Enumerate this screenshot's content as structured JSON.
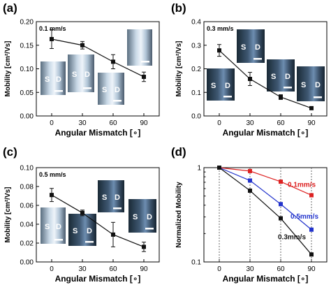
{
  "chart_data": [
    {
      "type": "line",
      "panel_label": "(a)",
      "annotation": "0.1 mm/s",
      "xlabel": "Angular Mismatch [∘]",
      "ylabel": "Mobility [cm²/Vs]",
      "x": [
        0,
        30,
        60,
        90
      ],
      "values": [
        0.163,
        0.15,
        0.115,
        0.083
      ],
      "errors": [
        0.02,
        0.008,
        0.015,
        0.01
      ],
      "xlim": [
        -15,
        105
      ],
      "ylim": [
        0,
        0.2
      ],
      "xticks": [
        "0",
        "30",
        "60",
        "90"
      ],
      "yticks": [
        "0.00",
        "0.05",
        "0.10",
        "0.15",
        "0.20"
      ],
      "insets": [
        {
          "labels": [
            "S",
            "D"
          ],
          "style": "bright"
        },
        {
          "labels": [
            "S",
            "D"
          ],
          "style": "bright"
        },
        {
          "labels": [
            "S",
            "D"
          ],
          "style": "bright"
        },
        {
          "labels": [],
          "style": "bright"
        }
      ]
    },
    {
      "type": "line",
      "panel_label": "(b)",
      "annotation": "0.3 mm/s",
      "xlabel": "Angular Mismatch [∘]",
      "ylabel": "Mobility [cm²/Vs]",
      "x": [
        0,
        30,
        60,
        90
      ],
      "values": [
        0.278,
        0.157,
        0.08,
        0.033
      ],
      "errors": [
        0.025,
        0.028,
        0.01,
        0.006
      ],
      "xlim": [
        -15,
        105
      ],
      "ylim": [
        0,
        0.4
      ],
      "xticks": [
        "0",
        "30",
        "60",
        "90"
      ],
      "yticks": [
        "0.0",
        "0.1",
        "0.2",
        "0.3",
        "0.4"
      ],
      "insets": [
        {
          "labels": [
            "S",
            "D"
          ],
          "style": "dark"
        },
        {
          "labels": [
            "S",
            "D"
          ],
          "style": "dark"
        },
        {
          "labels": [
            "S",
            "D"
          ],
          "style": "dark"
        },
        {
          "labels": [
            "S",
            "D"
          ],
          "style": "dark"
        }
      ]
    },
    {
      "type": "line",
      "panel_label": "(c)",
      "annotation": "0.5 mm/s",
      "xlabel": "Angular Mismatch [∘]",
      "ylabel": "Mobility [cm²/Vs]",
      "x": [
        0,
        30,
        60,
        90
      ],
      "values": [
        0.071,
        0.052,
        0.029,
        0.016
      ],
      "errors": [
        0.007,
        0.003,
        0.013,
        0.005
      ],
      "xlim": [
        -15,
        105
      ],
      "ylim": [
        0,
        0.1
      ],
      "xticks": [
        "0",
        "30",
        "60",
        "90"
      ],
      "yticks": [
        "0.00",
        "0.02",
        "0.04",
        "0.06",
        "0.08",
        "0.10"
      ],
      "insets": [
        {
          "labels": [
            "S",
            "D"
          ],
          "style": "bright"
        },
        {
          "labels": [
            "S",
            "D"
          ],
          "style": "dark"
        },
        {
          "labels": [
            "S",
            "D"
          ],
          "style": "dark"
        },
        {
          "labels": [
            "S",
            "D"
          ],
          "style": "dark"
        }
      ]
    },
    {
      "type": "line",
      "panel_label": "(d)",
      "xlabel": "Angular Mismatch [∘]",
      "ylabel": "Normalized Mobility",
      "yscale": "log",
      "x": [
        0,
        30,
        60,
        90
      ],
      "xlim": [
        -15,
        105
      ],
      "ylim": [
        0.1,
        1
      ],
      "xticks": [
        "0",
        "30",
        "60",
        "90"
      ],
      "yticks": [
        "0.1",
        "1"
      ],
      "grid": "vertical dashed at data x values",
      "series": [
        {
          "name": "0.1mm/s",
          "color": "#dd2222",
          "values": [
            1.0,
            0.92,
            0.71,
            0.51
          ]
        },
        {
          "name": "0.5mm/s",
          "color": "#2233cc",
          "values": [
            1.0,
            0.73,
            0.41,
            0.22
          ]
        },
        {
          "name": "0.3mm/s",
          "color": "#111111",
          "values": [
            1.0,
            0.57,
            0.29,
            0.12
          ]
        }
      ]
    }
  ]
}
